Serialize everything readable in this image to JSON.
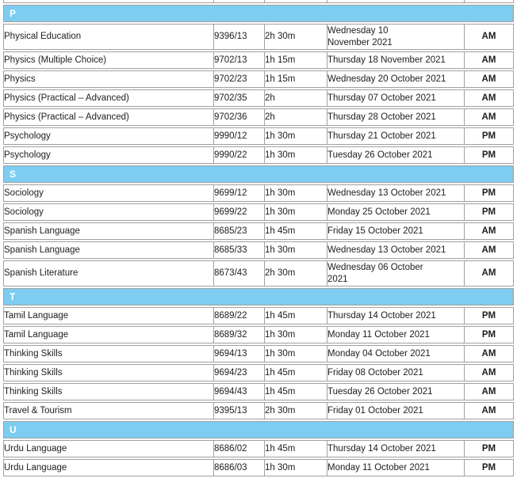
{
  "colors": {
    "section_band_blue": "#7ccdf0",
    "pm_cell_grey": "#d4d4d4",
    "border_grey": "#a0a0a0",
    "text": "#1d1d1b"
  },
  "table": {
    "sections": [
      {
        "letter": "P",
        "rows": [
          {
            "subject": "Physical Education",
            "code": "9396/13",
            "duration": "2h 30m",
            "date": "Wednesday 10 November 2021",
            "session": "AM",
            "wrap_date": true
          },
          {
            "subject": "Physics (Multiple Choice)",
            "code": "9702/13",
            "duration": "1h 15m",
            "date": "Thursday 18 November 2021",
            "session": "AM"
          },
          {
            "subject": "Physics",
            "code": "9702/23",
            "duration": "1h 15m",
            "date": "Wednesday 20 October 2021",
            "session": "AM"
          },
          {
            "subject": "Physics (Practical – Advanced)",
            "code": "9702/35",
            "duration": "2h",
            "date": "Thursday 07 October 2021",
            "session": "AM"
          },
          {
            "subject": "Physics (Practical – Advanced)",
            "code": "9702/36",
            "duration": "2h",
            "date": "Thursday 28 October 2021",
            "session": "AM"
          },
          {
            "subject": "Psychology",
            "code": "9990/12",
            "duration": "1h 30m",
            "date": "Thursday 21 October 2021",
            "session": "PM"
          },
          {
            "subject": "Psychology",
            "code": "9990/22",
            "duration": "1h 30m",
            "date": "Tuesday 26 October 2021",
            "session": "PM"
          }
        ]
      },
      {
        "letter": "S",
        "rows": [
          {
            "subject": "Sociology",
            "code": "9699/12",
            "duration": "1h 30m",
            "date": "Wednesday 13 October 2021",
            "session": "PM"
          },
          {
            "subject": "Sociology",
            "code": "9699/22",
            "duration": "1h 30m",
            "date": "Monday 25 October 2021",
            "session": "PM"
          },
          {
            "subject": "Spanish Language",
            "code": "8685/23",
            "duration": "1h 45m",
            "date": "Friday 15 October 2021",
            "session": "AM"
          },
          {
            "subject": "Spanish Language",
            "code": "8685/33",
            "duration": "1h 30m",
            "date": "Wednesday 13 October 2021",
            "session": "AM"
          },
          {
            "subject": "Spanish Literature",
            "code": "8673/43",
            "duration": "2h 30m",
            "date": "Wednesday 06 October 2021",
            "session": "AM",
            "wrap_date": true
          }
        ]
      },
      {
        "letter": "T",
        "rows": [
          {
            "subject": "Tamil Language",
            "code": "8689/22",
            "duration": "1h 45m",
            "date": "Thursday 14 October 2021",
            "session": "PM"
          },
          {
            "subject": "Tamil Language",
            "code": "8689/32",
            "duration": "1h 30m",
            "date": "Monday 11 October 2021",
            "session": "PM"
          },
          {
            "subject": "Thinking Skills",
            "code": "9694/13",
            "duration": "1h 30m",
            "date": "Monday 04 October 2021",
            "session": "AM"
          },
          {
            "subject": "Thinking Skills",
            "code": "9694/23",
            "duration": "1h 45m",
            "date": "Friday 08 October 2021",
            "session": "AM"
          },
          {
            "subject": "Thinking Skills",
            "code": "9694/43",
            "duration": "1h 45m",
            "date": "Tuesday 26 October 2021",
            "session": "AM"
          },
          {
            "subject": "Travel & Tourism",
            "code": "9395/13",
            "duration": "2h 30m",
            "date": "Friday 01 October 2021",
            "session": "AM"
          }
        ]
      },
      {
        "letter": "U",
        "rows": [
          {
            "subject": "Urdu Language",
            "code": "8686/02",
            "duration": "1h 45m",
            "date": "Thursday 14 October 2021",
            "session": "PM"
          },
          {
            "subject": "Urdu Language",
            "code": "8686/03",
            "duration": "1h 30m",
            "date": "Monday 11 October 2021",
            "session": "PM"
          }
        ]
      }
    ]
  }
}
